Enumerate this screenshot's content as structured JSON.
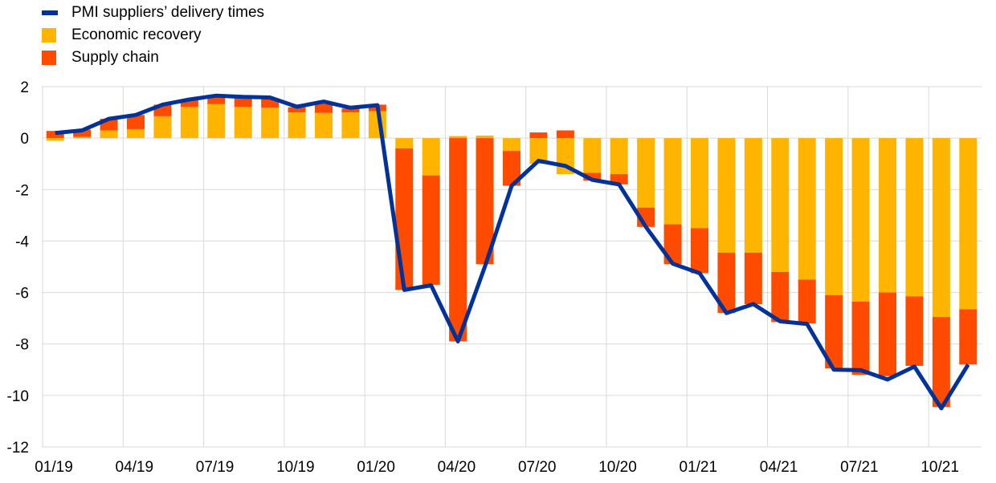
{
  "chart_data": {
    "type": "bar",
    "subtype": "stacked bar with line overlay",
    "x": [
      "01/19",
      "02/19",
      "03/19",
      "04/19",
      "05/19",
      "06/19",
      "07/19",
      "08/19",
      "09/19",
      "10/19",
      "11/19",
      "12/19",
      "01/20",
      "02/20",
      "03/20",
      "04/20",
      "05/20",
      "06/20",
      "07/20",
      "08/20",
      "09/20",
      "10/20",
      "11/20",
      "12/20",
      "01/21",
      "02/21",
      "03/21",
      "04/21",
      "05/21",
      "06/21",
      "07/21",
      "08/21",
      "09/21",
      "10/21",
      "11/21"
    ],
    "x_tick_labels": [
      "01/19",
      "04/19",
      "07/19",
      "10/19",
      "01/20",
      "04/20",
      "07/20",
      "10/20",
      "01/21",
      "04/21",
      "07/21",
      "10/21"
    ],
    "y_tick_labels": [
      "2",
      "0",
      "-2",
      "-4",
      "-6",
      "-8",
      "-10",
      "-12"
    ],
    "ylim": [
      -12,
      2
    ],
    "grid": true,
    "legend_position": "top-left",
    "series": [
      {
        "name": "PMI suppliers’ delivery times",
        "kind": "line",
        "color": "#003299",
        "values": [
          0.2,
          0.3,
          0.75,
          0.9,
          1.3,
          1.5,
          1.65,
          1.6,
          1.58,
          1.22,
          1.42,
          1.18,
          1.28,
          -5.9,
          -5.72,
          -7.9,
          -5.0,
          -1.85,
          -0.88,
          -1.08,
          -1.62,
          -1.8,
          -3.45,
          -4.88,
          -5.25,
          -6.8,
          -6.45,
          -7.12,
          -7.22,
          -9.0,
          -9.02,
          -9.38,
          -8.88,
          -10.5,
          -8.8
        ]
      },
      {
        "name": "Economic recovery",
        "kind": "bar",
        "color": "#ffb400",
        "values": [
          -0.1,
          0.05,
          0.3,
          0.35,
          0.85,
          1.22,
          1.32,
          1.22,
          1.18,
          1.0,
          0.98,
          1.0,
          1.05,
          -0.4,
          -1.45,
          0.08,
          0.1,
          -0.5,
          -1.0,
          -1.4,
          -1.35,
          -1.4,
          -2.7,
          -3.35,
          -3.5,
          -4.45,
          -4.45,
          -5.2,
          -5.5,
          -6.1,
          -6.35,
          -6.0,
          -6.15,
          -6.95,
          -6.65
        ]
      },
      {
        "name": "Supply chain",
        "kind": "bar",
        "color": "#ff4b00",
        "values": [
          0.28,
          0.28,
          0.45,
          0.55,
          0.45,
          0.25,
          0.3,
          0.35,
          0.37,
          0.2,
          0.42,
          0.15,
          0.25,
          -5.5,
          -4.25,
          -7.9,
          -4.9,
          -1.35,
          0.22,
          0.3,
          -0.3,
          -0.4,
          -0.75,
          -1.55,
          -1.75,
          -2.35,
          -2.0,
          -1.95,
          -1.7,
          -2.85,
          -2.85,
          -3.25,
          -2.7,
          -3.5,
          -2.15
        ]
      }
    ]
  }
}
